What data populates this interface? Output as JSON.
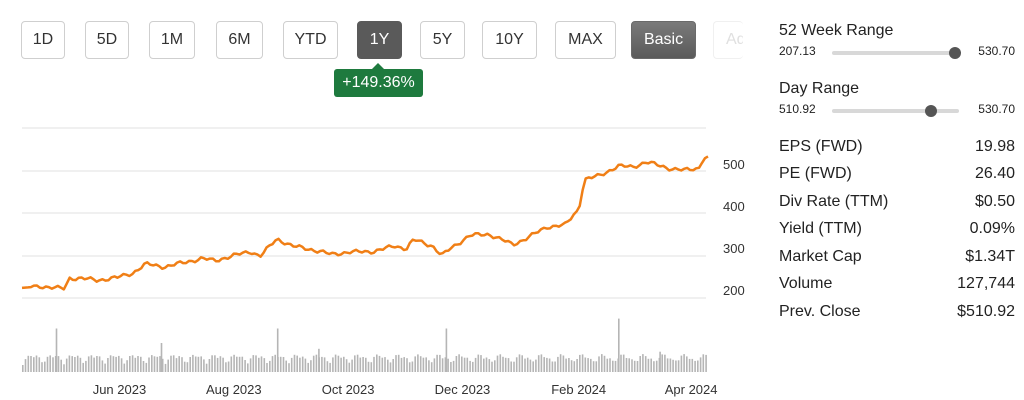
{
  "range_buttons": [
    {
      "label": "1D"
    },
    {
      "label": "5D"
    },
    {
      "label": "1M"
    },
    {
      "label": "6M"
    },
    {
      "label": "YTD"
    },
    {
      "label": "1Y",
      "active": true
    },
    {
      "label": "5Y"
    },
    {
      "label": "10Y"
    },
    {
      "label": "MAX"
    }
  ],
  "mode_buttons": {
    "basic": "Basic",
    "advanced": "Advanced"
  },
  "change_badge": "+149.36%",
  "stats": {
    "week52": {
      "title": "52 Week Range",
      "low": "207.13",
      "high": "530.70",
      "position": 0.97
    },
    "day": {
      "title": "Day Range",
      "low": "510.92",
      "high": "530.70",
      "position": 0.78
    },
    "rows": [
      {
        "label": "EPS (FWD)",
        "value": "19.98"
      },
      {
        "label": "PE (FWD)",
        "value": "26.40"
      },
      {
        "label": "Div Rate (TTM)",
        "value": "$0.50"
      },
      {
        "label": "Yield (TTM)",
        "value": "0.09%"
      },
      {
        "label": "Market Cap",
        "value": "$1.34T"
      },
      {
        "label": "Volume",
        "value": "127,744"
      },
      {
        "label": "Prev. Close",
        "value": "$510.92"
      }
    ]
  },
  "chart_data": {
    "type": "line",
    "x_range": [
      "2023-04-10",
      "2024-04-10"
    ],
    "y_ticks": [
      200,
      300,
      400,
      500
    ],
    "x_ticks": [
      {
        "label": "Jun 2023",
        "date": "2023-06-01"
      },
      {
        "label": "Aug 2023",
        "date": "2023-08-01"
      },
      {
        "label": "Oct 2023",
        "date": "2023-10-01"
      },
      {
        "label": "Dec 2023",
        "date": "2023-12-01"
      },
      {
        "label": "Feb 2024",
        "date": "2024-02-01"
      },
      {
        "label": "Apr 2024",
        "date": "2024-04-01"
      }
    ],
    "line_color": "#f07f16",
    "series": [
      {
        "points": [
          [
            "2023-04-10",
            205
          ],
          [
            "2023-04-20",
            209
          ],
          [
            "2023-04-28",
            205
          ],
          [
            "2023-05-03",
            203
          ],
          [
            "2023-05-05",
            228
          ],
          [
            "2023-05-12",
            228
          ],
          [
            "2023-05-20",
            223
          ],
          [
            "2023-05-31",
            230
          ],
          [
            "2023-06-08",
            240
          ],
          [
            "2023-06-15",
            262
          ],
          [
            "2023-06-25",
            255
          ],
          [
            "2023-07-05",
            265
          ],
          [
            "2023-07-15",
            275
          ],
          [
            "2023-07-22",
            270
          ],
          [
            "2023-08-01",
            282
          ],
          [
            "2023-08-10",
            292
          ],
          [
            "2023-08-15",
            280
          ],
          [
            "2023-08-24",
            322
          ],
          [
            "2023-09-01",
            305
          ],
          [
            "2023-09-12",
            296
          ],
          [
            "2023-09-22",
            285
          ],
          [
            "2023-10-01",
            290
          ],
          [
            "2023-10-15",
            292
          ],
          [
            "2023-10-26",
            305
          ],
          [
            "2023-11-01",
            298
          ],
          [
            "2023-11-05",
            320
          ],
          [
            "2023-11-15",
            305
          ],
          [
            "2023-11-20",
            282
          ],
          [
            "2023-11-25",
            300
          ],
          [
            "2023-12-05",
            330
          ],
          [
            "2023-12-15",
            333
          ],
          [
            "2023-12-28",
            308
          ],
          [
            "2024-01-05",
            325
          ],
          [
            "2024-01-15",
            350
          ],
          [
            "2024-01-25",
            355
          ],
          [
            "2024-01-30",
            383
          ],
          [
            "2024-02-01",
            390
          ],
          [
            "2024-02-04",
            463
          ],
          [
            "2024-02-12",
            472
          ],
          [
            "2024-02-22",
            495
          ],
          [
            "2024-03-01",
            493
          ],
          [
            "2024-03-08",
            505
          ],
          [
            "2024-03-20",
            490
          ],
          [
            "2024-03-28",
            485
          ],
          [
            "2024-04-05",
            490
          ],
          [
            "2024-04-09",
            518
          ]
        ]
      }
    ],
    "volume": [
      {
        "date": "2023-04-28",
        "value": 0.75
      },
      {
        "date": "2023-06-23",
        "value": 0.5
      },
      {
        "date": "2023-08-24",
        "value": 0.75
      },
      {
        "date": "2023-09-15",
        "value": 0.4
      },
      {
        "date": "2023-11-22",
        "value": 0.75
      },
      {
        "date": "2024-02-22",
        "value": 0.92
      },
      {
        "date": "2024-03-15",
        "value": 0.35
      }
    ]
  }
}
